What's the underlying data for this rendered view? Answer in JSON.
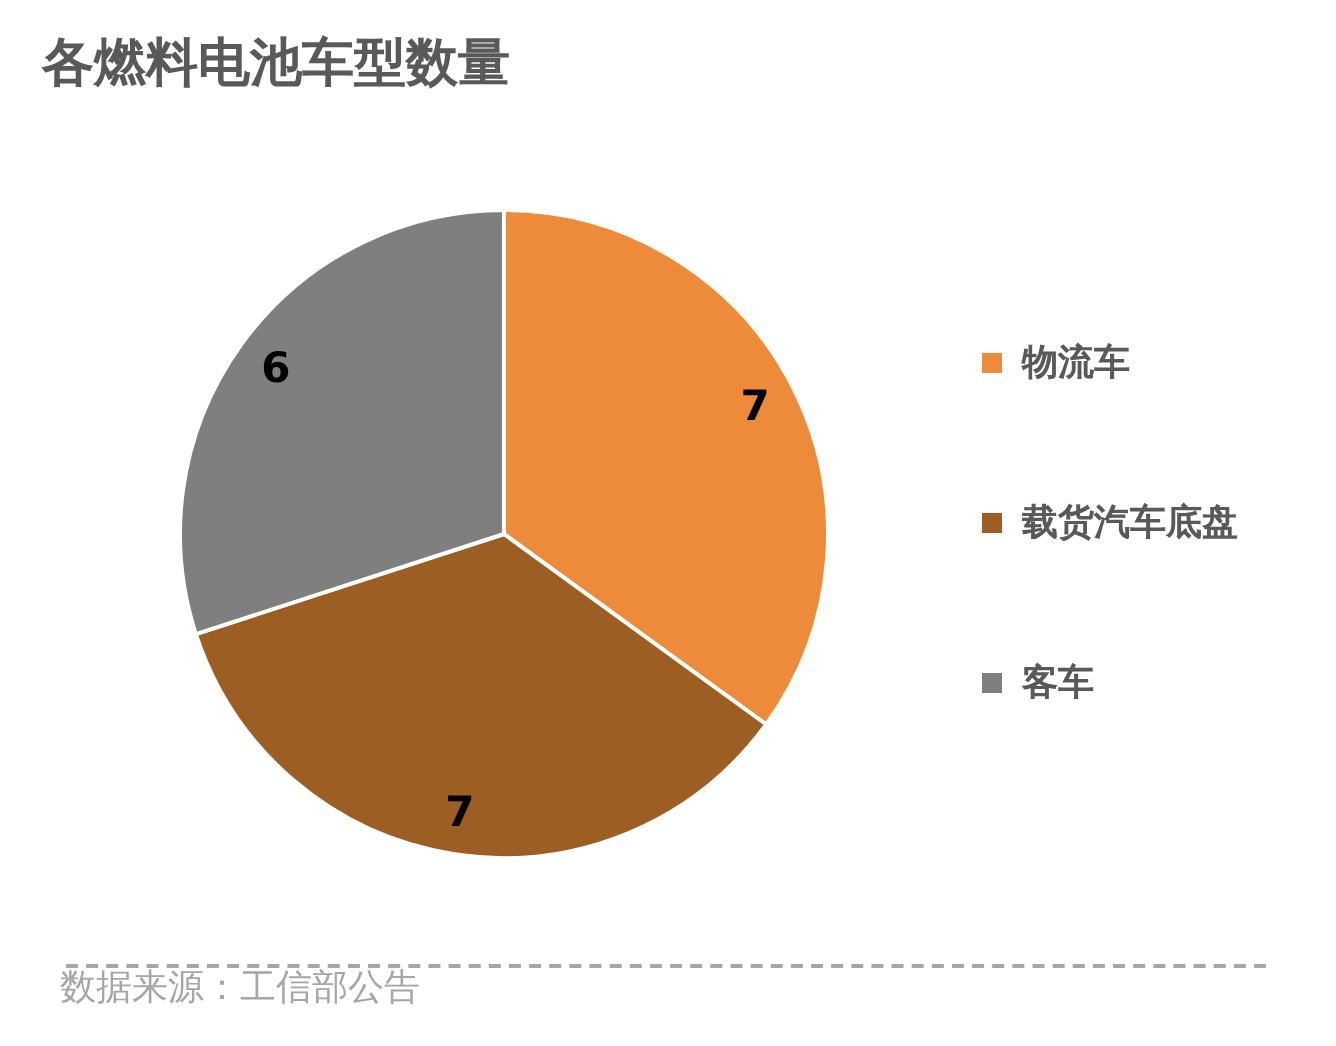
{
  "chart_data": {
    "type": "pie",
    "title": "各燃料电池车型数量",
    "categories": [
      "物流车",
      "载货汽车底盘",
      "客车"
    ],
    "values": [
      7,
      7,
      6
    ],
    "colors": [
      "#ed8b3a",
      "#9c5e23",
      "#7f7f7f"
    ],
    "data_labels": true,
    "legend": "right",
    "annotations": [
      "数据来源：工信部公告"
    ]
  }
}
